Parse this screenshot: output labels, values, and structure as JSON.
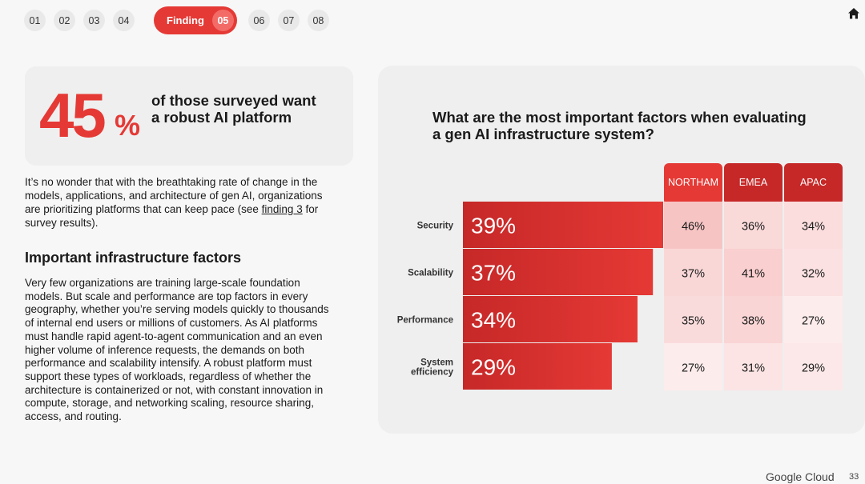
{
  "nav": {
    "items": [
      "01",
      "02",
      "03",
      "04"
    ],
    "active_label": "Finding",
    "active_num": "05",
    "items_after": [
      "06",
      "07",
      "08"
    ]
  },
  "stat": {
    "number": "45",
    "percent": "%",
    "text": "of those surveyed want a robust AI platform"
  },
  "intro": {
    "text_before": "It’s no wonder that with the breathtaking rate of change in the models, applications, and architecture of gen AI, organizations are prioritizing platforms that can keep pace (see ",
    "link": "finding 3",
    "text_after": " for survey results)."
  },
  "section_title": "Important infrastructure factors",
  "body_text": "Very few organizations are training large-scale foundation models. But scale and performance are top factors in every geography, whether you’re serving models quickly to thousands of internal end users or millions of customers. As AI platforms must handle rapid agent-to-agent communication and an even higher volume of inference requests, the demands on both performance and scalability intensify. A robust platform must support these types of workloads, regardless of whether the architecture is containerized or not, with constant innovation in compute, storage, and networking scaling, resource sharing, access, and routing.",
  "chart_data": {
    "type": "bar",
    "title": "What are the most important factors when evaluating a gen AI infrastructure system?",
    "categories": [
      "Security",
      "Scalability",
      "Performance",
      "System efficiency"
    ],
    "values": [
      39,
      37,
      34,
      29
    ],
    "value_labels": [
      "39%",
      "37%",
      "34%",
      "29%"
    ],
    "regions": [
      "NORTHAM",
      "EMEA",
      "APAC"
    ],
    "region_values": [
      [
        46,
        36,
        34
      ],
      [
        37,
        41,
        32
      ],
      [
        35,
        38,
        27
      ],
      [
        27,
        31,
        29
      ]
    ],
    "region_labels": [
      [
        "46%",
        "36%",
        "34%"
      ],
      [
        "37%",
        "41%",
        "32%"
      ],
      [
        "35%",
        "38%",
        "27%"
      ],
      [
        "27%",
        "31%",
        "29%"
      ]
    ],
    "colors": {
      "header_dark": "#c62828",
      "header": "#e53935",
      "bar": "#d32f2f",
      "cell_strong": "#f8c7c7",
      "cell_light": "#fde6e6"
    }
  },
  "footer": {
    "logo": "Google Cloud",
    "page": "33"
  }
}
